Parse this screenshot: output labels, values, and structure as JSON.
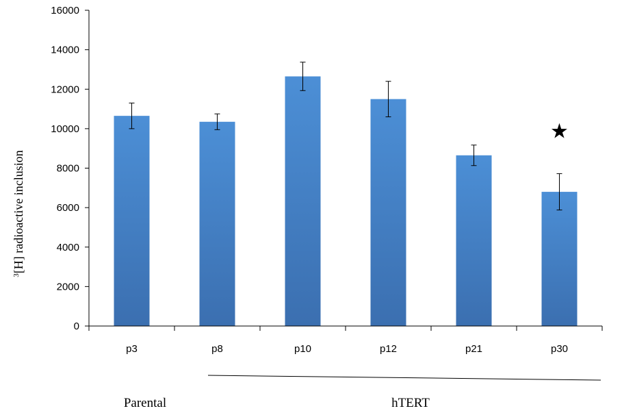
{
  "chart_data": {
    "type": "bar",
    "categories": [
      "p3",
      "p8",
      "p10",
      "p12",
      "p21",
      "p30"
    ],
    "values": [
      10650,
      10350,
      12650,
      11500,
      8650,
      6800
    ],
    "error": [
      650,
      400,
      720,
      900,
      520,
      920
    ],
    "ylim": [
      0,
      16000
    ],
    "yticks": [
      0,
      2000,
      4000,
      6000,
      8000,
      10000,
      12000,
      14000,
      16000
    ],
    "ylabel_sup": "3",
    "ylabel_rest": "[H] radioactive inclusion",
    "grid": false,
    "bar_color": "#4a88cf",
    "significance_marker": {
      "category": "p30",
      "symbol": "★"
    },
    "groups": [
      {
        "label": "Parental",
        "categories": [
          "p3"
        ]
      },
      {
        "label": "hTERT",
        "categories": [
          "p8",
          "p10",
          "p12",
          "p21",
          "p30"
        ]
      }
    ]
  }
}
